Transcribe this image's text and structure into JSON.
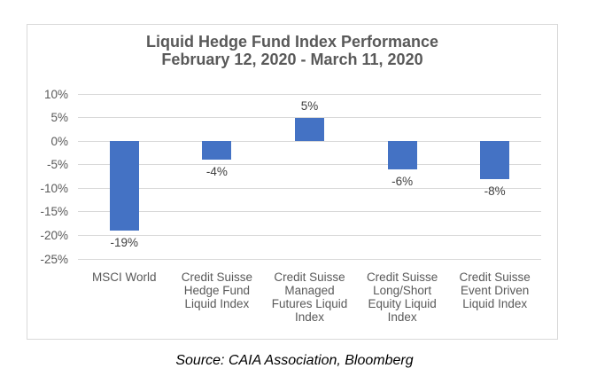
{
  "chart_data": {
    "type": "bar",
    "title": "Liquid Hedge Fund Index Performance",
    "subtitle": "February 12, 2020 - March 11, 2020",
    "categories": [
      "MSCI World",
      "Credit Suisse Hedge Fund Liquid Index",
      "Credit Suisse Managed Futures Liquid Index",
      "Credit Suisse Long/Short Equity Liquid Index",
      "Credit Suisse Event Driven Liquid Index"
    ],
    "category_lines": [
      [
        "MSCI World"
      ],
      [
        "Credit Suisse",
        "Hedge Fund",
        "Liquid Index"
      ],
      [
        "Credit Suisse",
        "Managed",
        "Futures Liquid",
        "Index"
      ],
      [
        "Credit Suisse",
        "Long/Short",
        "Equity Liquid",
        "Index"
      ],
      [
        "Credit Suisse",
        "Event Driven",
        "Liquid Index"
      ]
    ],
    "values": [
      -19,
      -4,
      5,
      -6,
      -8
    ],
    "data_labels": [
      "-19%",
      "-4%",
      "5%",
      "-6%",
      "-8%"
    ],
    "y_axis": {
      "tick_labels": [
        "10%",
        "5%",
        "0%",
        "-5%",
        "-10%",
        "-15%",
        "-20%",
        "-25%"
      ],
      "tick_values": [
        10,
        5,
        0,
        -5,
        -10,
        -15,
        -20,
        -25
      ],
      "min": -25,
      "max": 10
    },
    "grid": true,
    "legend": "none",
    "colors": {
      "bar": "#4472C4",
      "gridline": "#D9D9D9",
      "axis_text": "#595959",
      "title_text": "#595959",
      "data_label_text": "#404040",
      "border": "#D9D9D9"
    }
  },
  "footer": {
    "source": "Source: CAIA Association, Bloomberg"
  }
}
